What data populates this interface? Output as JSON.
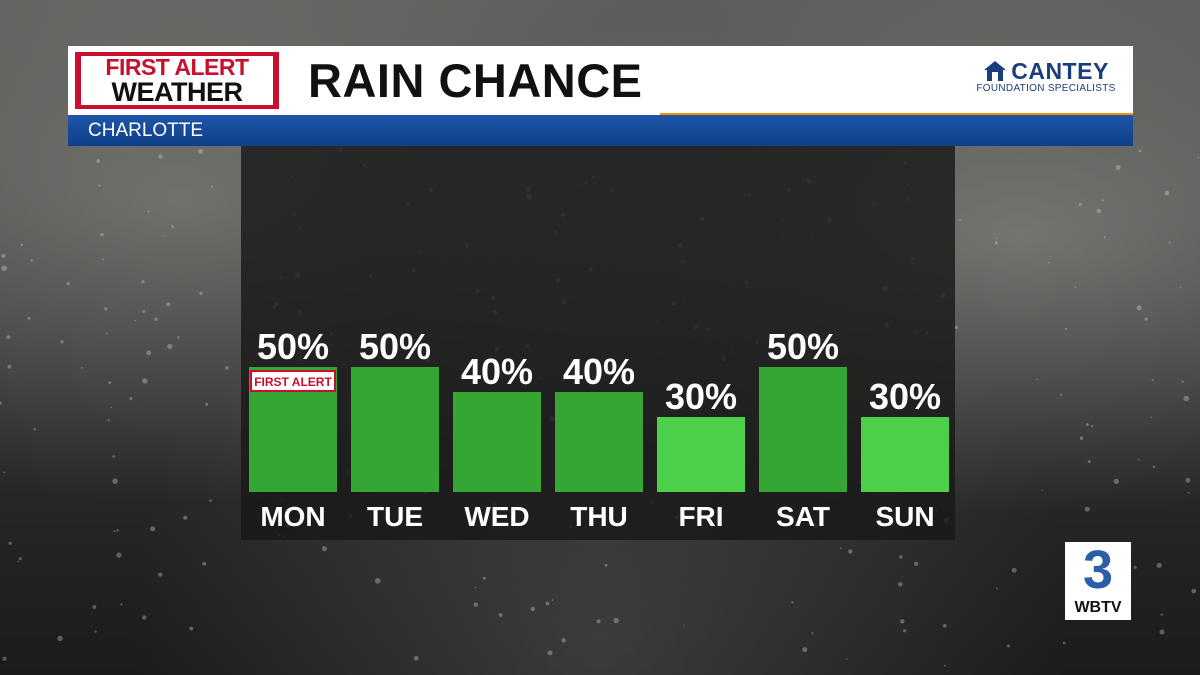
{
  "header": {
    "logo_line1": "FIRST ALERT",
    "logo_line2": "WEATHER",
    "title": "RAIN CHANCE",
    "sponsor_name": "CANTEY",
    "sponsor_sub": "FOUNDATION SPECIALISTS",
    "location": "CHARLOTTE"
  },
  "station": {
    "mark": "3",
    "name": "WBTV"
  },
  "colors": {
    "bar_dark": "#35a633",
    "bar_light": "#4cd04a",
    "alert_red": "#c8102e",
    "banner_blue": "#1a4f9e",
    "accent_orange": "#f39200"
  },
  "chart_data": {
    "type": "bar",
    "categories": [
      "MON",
      "TUE",
      "WED",
      "THU",
      "FRI",
      "SAT",
      "SUN"
    ],
    "values": [
      50,
      50,
      40,
      40,
      30,
      50,
      30
    ],
    "value_labels": [
      "50%",
      "50%",
      "40%",
      "40%",
      "30%",
      "50%",
      "30%"
    ],
    "unit": "%",
    "ylim": [
      0,
      100
    ],
    "grid": false,
    "legend": "none",
    "bar_colors": [
      "dark",
      "dark",
      "dark",
      "dark",
      "light",
      "dark",
      "light"
    ],
    "badges": [
      {
        "category": "MON",
        "text": "FIRST ALERT"
      }
    ]
  }
}
